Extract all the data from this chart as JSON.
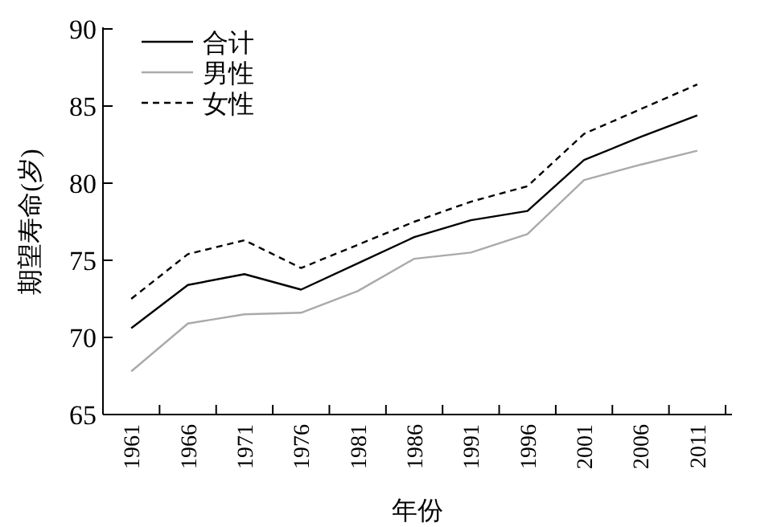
{
  "chart_data": {
    "type": "line",
    "xlabel": "年份",
    "ylabel": "期望寿命(岁)",
    "categories": [
      "1961",
      "1966",
      "1971",
      "1976",
      "1981",
      "1986",
      "1991",
      "1996",
      "2001",
      "2006",
      "2011"
    ],
    "ylim": [
      65,
      90
    ],
    "yticks": [
      65,
      70,
      75,
      80,
      85,
      90
    ],
    "grid": false,
    "legend": "top left",
    "series": [
      {
        "name": "合计",
        "color": "#000000",
        "line_style": "solid",
        "values": [
          70.6,
          73.4,
          74.1,
          73.1,
          74.8,
          76.5,
          77.6,
          78.2,
          81.5,
          83.0,
          84.4
        ]
      },
      {
        "name": "男性",
        "color": "#aaaaaa",
        "line_style": "solid",
        "values": [
          67.8,
          70.9,
          71.5,
          71.6,
          73.0,
          75.1,
          75.5,
          76.7,
          80.2,
          81.2,
          82.1
        ]
      },
      {
        "name": "女性",
        "color": "#000000",
        "line_style": "dashed",
        "values": [
          72.5,
          75.4,
          76.3,
          74.5,
          76.0,
          77.5,
          78.8,
          79.8,
          83.2,
          84.8,
          86.4
        ]
      }
    ]
  }
}
